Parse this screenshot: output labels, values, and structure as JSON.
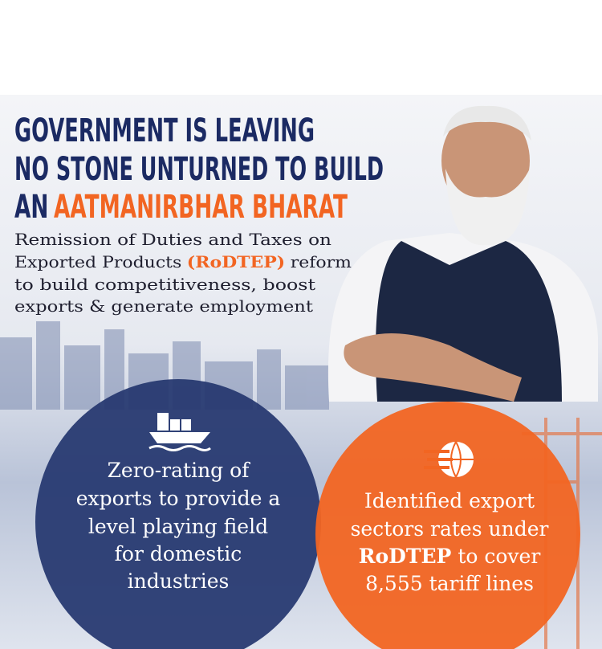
{
  "headline": {
    "line1": "GOVERNMENT IS LEAVING",
    "line2": "NO STONE UNTURNED TO BUILD",
    "line3_start": "AN",
    "line3_highlight": "AATMANIRBHAR BHARAT"
  },
  "intro": {
    "line1": "Remission of Duties and Taxes on",
    "line2_start": "Exported Products",
    "line2_highlight": "(RoDTEP)",
    "line2_end": "reform",
    "line3": "to build competitiveness, boost",
    "line4": "exports & generate employment"
  },
  "left_circle": {
    "lines": [
      "Zero-rating of",
      "exports to provide a",
      "level playing field",
      "for domestic",
      "industries"
    ]
  },
  "right_circle": {
    "line1": "Identified export",
    "line2": "sectors rates under",
    "line3_bold": "RoDTEP",
    "line3_end": "to cover",
    "line4": "8,555 tariff lines"
  }
}
